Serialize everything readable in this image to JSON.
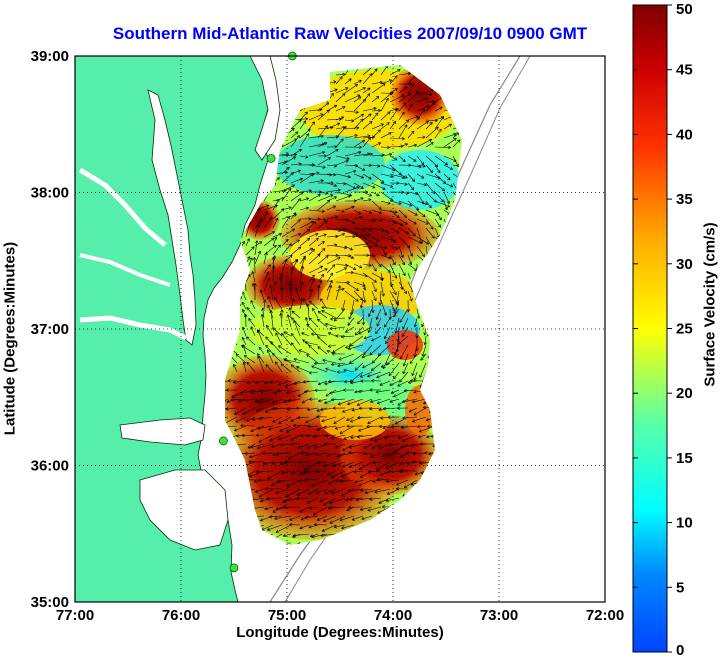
{
  "title": "Southern Mid-Atlantic Raw Velocities 2007/09/10 0900 GMT",
  "xlabel": "Longitude (Degrees:Minutes)",
  "ylabel": "Latitude (Degrees:Minutes)",
  "colorbar_label": "Surface Velocity (cm/s)",
  "x_ticks": [
    "77:00",
    "76:00",
    "75:00",
    "74:00",
    "73:00",
    "72:00"
  ],
  "y_ticks": [
    "39:00",
    "38:00",
    "37:00",
    "36:00",
    "35:00"
  ],
  "colorbar_ticks": [
    "0",
    "5",
    "10",
    "15",
    "20",
    "25",
    "30",
    "35",
    "40",
    "45",
    "50"
  ],
  "colors": {
    "land": "#55eeaa",
    "ocean": "#ffffff",
    "title": "#0000ff",
    "station": "#44dd44"
  },
  "map": {
    "lon_range": [
      -77,
      -72
    ],
    "lat_range": [
      35,
      39
    ],
    "grid": true,
    "colormap": "jet",
    "velocity_range": [
      0,
      50
    ],
    "stations": [
      {
        "lon": -74.95,
        "lat": 39.0
      },
      {
        "lon": -75.15,
        "lat": 38.25
      },
      {
        "lon": -75.6,
        "lat": 36.18
      },
      {
        "lon": -75.5,
        "lat": 35.25
      }
    ]
  }
}
